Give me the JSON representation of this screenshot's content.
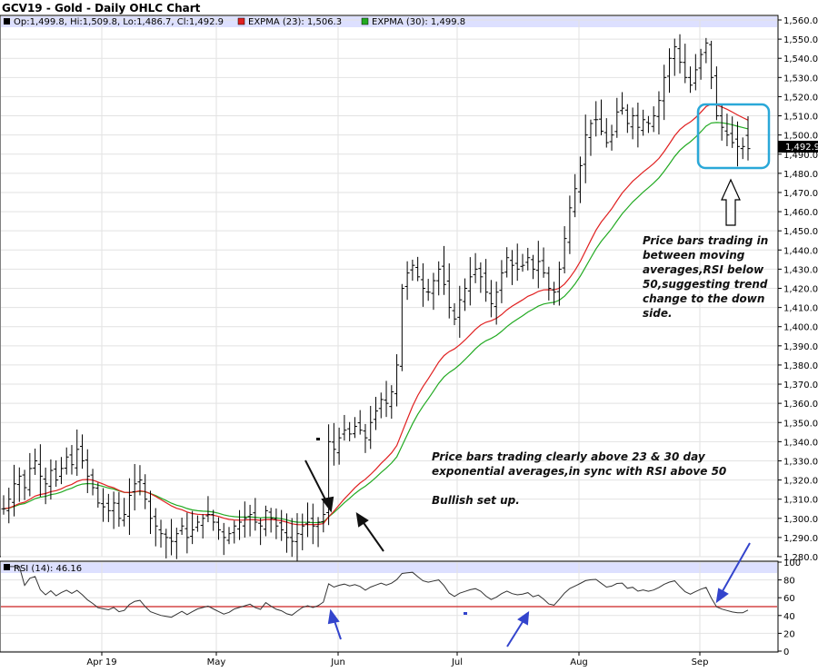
{
  "title": "GCV19 - Gold - Daily OHLC Chart",
  "header": {
    "ohlc_legend": "Op:1,499.8, Hi:1,509.8, Lo:1,486.7, Cl:1,492.9",
    "ema23_legend": "EXPMA (23): 1,506.3",
    "ema30_legend": "EXPMA (30): 1,499.8"
  },
  "last_price_label": "1,492.9",
  "colors": {
    "price_bars": "#000000",
    "ema23": "#e02020",
    "ema30": "#22aa22",
    "rsi_line": "#333333",
    "rsi_50_line": "#cc2222",
    "header_band": "#dde0ff",
    "highlight_box": "#2aa8d8",
    "annotation_arrows_black": "#111111",
    "annotation_arrows_blue": "#3344cc"
  },
  "chart_data": [
    {
      "type": "ohlc",
      "title": "GCV19 - Gold - Daily OHLC Chart",
      "ylim": [
        1280,
        1560
      ],
      "y_ticks": [
        "1,280.0",
        "1,290.0",
        "1,300.0",
        "1,310.0",
        "1,320.0",
        "1,330.0",
        "1,340.0",
        "1,350.0",
        "1,360.0",
        "1,370.0",
        "1,380.0",
        "1,390.0",
        "1,400.0",
        "1,410.0",
        "1,420.0",
        "1,430.0",
        "1,440.0",
        "1,450.0",
        "1,460.0",
        "1,470.0",
        "1,480.0",
        "1,490.0",
        "1,500.0",
        "1,510.0",
        "1,520.0",
        "1,530.0",
        "1,540.0",
        "1,550.0",
        "1,560.0"
      ],
      "x_ticks": [
        "Apr 19",
        "May",
        "Jun",
        "Jul",
        "Aug",
        "Sep"
      ],
      "grid": true,
      "close_series": [
        1305,
        1310,
        1318,
        1322,
        1316,
        1326,
        1330,
        1322,
        1318,
        1325,
        1320,
        1326,
        1332,
        1328,
        1336,
        1330,
        1322,
        1316,
        1308,
        1306,
        1304,
        1308,
        1300,
        1302,
        1312,
        1318,
        1320,
        1310,
        1300,
        1296,
        1292,
        1290,
        1288,
        1292,
        1296,
        1290,
        1294,
        1298,
        1300,
        1302,
        1298,
        1294,
        1290,
        1292,
        1296,
        1298,
        1300,
        1302,
        1298,
        1296,
        1304,
        1300,
        1296,
        1294,
        1290,
        1288,
        1292,
        1296,
        1298,
        1296,
        1298,
        1302,
        1340,
        1336,
        1342,
        1346,
        1344,
        1348,
        1346,
        1342,
        1350,
        1356,
        1362,
        1360,
        1366,
        1380,
        1420,
        1428,
        1432,
        1426,
        1420,
        1418,
        1424,
        1430,
        1422,
        1410,
        1404,
        1414,
        1420,
        1426,
        1430,
        1426,
        1418,
        1412,
        1418,
        1428,
        1436,
        1432,
        1430,
        1432,
        1436,
        1430,
        1434,
        1428,
        1420,
        1418,
        1430,
        1446,
        1462,
        1472,
        1484,
        1500,
        1506,
        1508,
        1502,
        1496,
        1500,
        1512,
        1514,
        1506,
        1510,
        1504,
        1508,
        1506,
        1510,
        1518,
        1530,
        1540,
        1546,
        1538,
        1530,
        1526,
        1534,
        1542,
        1548,
        1530,
        1510,
        1504,
        1500,
        1496,
        1494,
        1494,
        1492.9
      ],
      "series": [
        {
          "name": "EXPMA (23)",
          "last_value": 1506.3
        },
        {
          "name": "EXPMA (30)",
          "last_value": 1499.8
        }
      ],
      "last_bar": {
        "open": 1499.8,
        "high": 1509.8,
        "low": 1486.7,
        "close": 1492.9
      }
    },
    {
      "type": "line",
      "title": "RSI (14): 46.16",
      "ylim": [
        0,
        100
      ],
      "y_ticks": [
        "0",
        "20",
        "40",
        "60",
        "80",
        "100"
      ],
      "reference_line": 50,
      "last_value": 46.16
    }
  ],
  "rsi_legend": "RSI (14): 46.16",
  "annotations": {
    "top_right": [
      "Price bars trading in",
      "between moving",
      "averages,RSI below",
      "50,suggesting trend",
      "change to the down",
      "side."
    ],
    "middle": [
      "Price bars trading clearly above 23 & 30 day",
      "exponential averages,in sync with RSI above 50"
    ],
    "bullish": "Bullish set up."
  }
}
